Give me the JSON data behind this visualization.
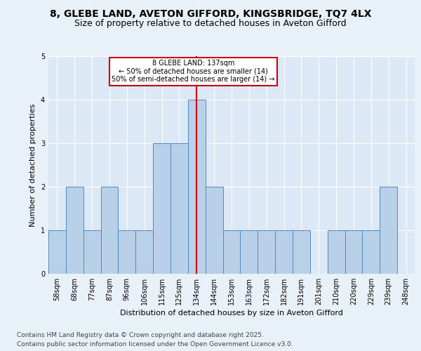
{
  "title_line1": "8, GLEBE LAND, AVETON GIFFORD, KINGSBRIDGE, TQ7 4LX",
  "title_line2": "Size of property relative to detached houses in Aveton Gifford",
  "xlabel": "Distribution of detached houses by size in Aveton Gifford",
  "ylabel": "Number of detached properties",
  "footer": "Contains HM Land Registry data © Crown copyright and database right 2025.\nContains public sector information licensed under the Open Government Licence v3.0.",
  "categories": [
    "58sqm",
    "68sqm",
    "77sqm",
    "87sqm",
    "96sqm",
    "106sqm",
    "115sqm",
    "125sqm",
    "134sqm",
    "144sqm",
    "153sqm",
    "163sqm",
    "172sqm",
    "182sqm",
    "191sqm",
    "201sqm",
    "210sqm",
    "220sqm",
    "229sqm",
    "239sqm",
    "248sqm"
  ],
  "values": [
    1,
    2,
    1,
    2,
    1,
    1,
    3,
    3,
    4,
    2,
    1,
    1,
    1,
    1,
    1,
    0,
    1,
    1,
    1,
    2,
    0
  ],
  "bar_color": "#b8d0e8",
  "bar_edge_color": "#5588bb",
  "reference_line_x": 8,
  "annotation_line1": "8 GLEBE LAND: 137sqm",
  "annotation_line2": "← 50% of detached houses are smaller (14)",
  "annotation_line3": "50% of semi-detached houses are larger (14) →",
  "annotation_box_color": "#ffffff",
  "annotation_box_edge_color": "#cc0000",
  "ref_line_color": "#cc0000",
  "ylim": [
    0,
    5
  ],
  "background_color": "#e8f0f8",
  "plot_background_color": "#dce8f5",
  "title_fontsize": 10,
  "subtitle_fontsize": 9,
  "axis_fontsize": 8,
  "tick_fontsize": 7,
  "footer_fontsize": 6.5
}
